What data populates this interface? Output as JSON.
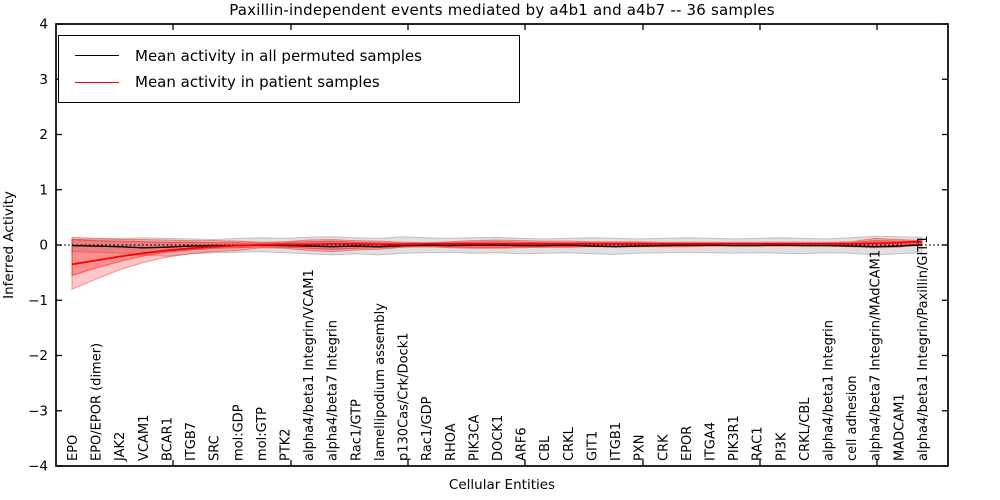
{
  "chart_data": {
    "type": "line",
    "title": "Paxillin-independent events mediated by a4b1 and a4b7 -- 36 samples",
    "xlabel": "Cellular Entities",
    "ylabel": "Inferred Activity",
    "ylim": [
      -4,
      4
    ],
    "yticks": [
      -4,
      -3,
      -2,
      -1,
      0,
      1,
      2,
      3,
      4
    ],
    "grid": false,
    "legend_position": "upper-left",
    "zero_reference_line": true,
    "categories": [
      "EPO",
      "EPO/EPOR (dimer)",
      "JAK2",
      "VCAM1",
      "BCAR1",
      "ITGB7",
      "SRC",
      "mol:GDP",
      "mol:GTP",
      "PTK2",
      "alpha4/beta1 Integrin/VCAM1",
      "alpha4/beta7 Integrin",
      "Rac1/GTP",
      "lamellipodium assembly",
      "p130Cas/Crk/Dock1",
      "Rac1/GDP",
      "RHOA",
      "PIK3CA",
      "DOCK1",
      "ARF6",
      "CBL",
      "CRKL",
      "GIT1",
      "ITGB1",
      "PXN",
      "CRK",
      "EPOR",
      "ITGA4",
      "PIK3R1",
      "RAC1",
      "PI3K",
      "CRKL/CBL",
      "alpha4/beta1 Integrin",
      "cell adhesion",
      "alpha4/beta7 Integrin/MAdCAM1",
      "MADCAM1",
      "alpha4/beta1 Integrin/Paxillin/GIT1"
    ],
    "series": [
      {
        "name": "Mean activity in all permuted samples",
        "color": "#000000",
        "values": [
          -0.01,
          -0.02,
          -0.03,
          -0.05,
          -0.04,
          -0.02,
          -0.01,
          -0.01,
          0,
          -0.01,
          -0.02,
          -0.03,
          -0.02,
          -0.03,
          -0.01,
          0,
          -0.01,
          0,
          0,
          -0.01,
          -0.01,
          0,
          -0.02,
          -0.03,
          -0.02,
          -0.01,
          0,
          0,
          -0.01,
          -0.01,
          0,
          -0.01,
          -0.01,
          -0.02,
          -0.03,
          -0.02,
          0
        ]
      },
      {
        "name": "Mean activity in patient samples",
        "color": "#ff0000",
        "values": [
          -0.35,
          -0.28,
          -0.21,
          -0.15,
          -0.1,
          -0.06,
          -0.03,
          -0.01,
          0,
          0.01,
          0.01,
          0.02,
          0.02,
          0.01,
          0.01,
          0.02,
          0.02,
          0.02,
          0.02,
          0.02,
          0.02,
          0.02,
          0.02,
          0.02,
          0.02,
          0.02,
          0.02,
          0.02,
          0.02,
          0.02,
          0.02,
          0.02,
          0.02,
          0.02,
          0.03,
          0.04,
          0.06
        ]
      }
    ],
    "bands": [
      {
        "name": "permuted-samples-range",
        "color": "#999999",
        "opacity": 0.3,
        "top": [
          0.1,
          0.11,
          0.12,
          0.13,
          0.12,
          0.11,
          0.1,
          0.12,
          0.13,
          0.12,
          0.14,
          0.15,
          0.13,
          0.12,
          0.15,
          0.13,
          0.12,
          0.13,
          0.14,
          0.12,
          0.11,
          0.12,
          0.13,
          0.12,
          0.11,
          0.12,
          0.13,
          0.12,
          0.11,
          0.12,
          0.13,
          0.12,
          0.11,
          0.13,
          0.16,
          0.15,
          0.14
        ],
        "bottom": [
          -0.12,
          -0.13,
          -0.15,
          -0.18,
          -0.2,
          -0.16,
          -0.14,
          -0.13,
          -0.12,
          -0.14,
          -0.16,
          -0.18,
          -0.16,
          -0.18,
          -0.15,
          -0.14,
          -0.13,
          -0.15,
          -0.14,
          -0.16,
          -0.15,
          -0.14,
          -0.16,
          -0.17,
          -0.15,
          -0.14,
          -0.13,
          -0.14,
          -0.15,
          -0.14,
          -0.15,
          -0.16,
          -0.14,
          -0.15,
          -0.18,
          -0.16,
          -0.14
        ]
      },
      {
        "name": "patient-samples-range-outer",
        "color": "#ff0000",
        "opacity": 0.22,
        "top": [
          0.14,
          0.12,
          0.1,
          0.1,
          0.09,
          0.08,
          0.08,
          0.07,
          0.05,
          0.06,
          0.09,
          0.1,
          0.08,
          0.07,
          0.05,
          0.04,
          0.06,
          0.08,
          0.09,
          0.08,
          0.07,
          0.07,
          0.06,
          0.06,
          0.06,
          0.05,
          0.05,
          0.05,
          0.05,
          0.05,
          0.05,
          0.05,
          0.05,
          0.06,
          0.12,
          0.1,
          0.08
        ],
        "bottom": [
          -0.8,
          -0.62,
          -0.45,
          -0.32,
          -0.22,
          -0.16,
          -0.12,
          -0.1,
          -0.05,
          -0.06,
          -0.1,
          -0.12,
          -0.09,
          -0.08,
          -0.04,
          -0.03,
          -0.05,
          -0.06,
          -0.06,
          -0.05,
          -0.04,
          -0.04,
          -0.03,
          -0.03,
          -0.03,
          -0.03,
          -0.03,
          -0.02,
          -0.02,
          -0.02,
          -0.02,
          -0.02,
          -0.02,
          -0.03,
          -0.05,
          -0.04,
          0.02
        ]
      },
      {
        "name": "patient-samples-range-inner",
        "color": "#ff0000",
        "opacity": 0.28,
        "top": [
          0.1,
          0.08,
          0.07,
          0.06,
          0.05,
          0.05,
          0.04,
          0.04,
          0.03,
          0.04,
          0.06,
          0.07,
          0.05,
          0.04,
          0.03,
          0.03,
          0.04,
          0.05,
          0.06,
          0.05,
          0.04,
          0.04,
          0.04,
          0.04,
          0.04,
          0.03,
          0.03,
          0.03,
          0.03,
          0.03,
          0.03,
          0.03,
          0.03,
          0.04,
          0.08,
          0.07,
          0.07
        ],
        "bottom": [
          -0.55,
          -0.42,
          -0.3,
          -0.2,
          -0.13,
          -0.09,
          -0.06,
          -0.05,
          -0.03,
          -0.04,
          -0.06,
          -0.08,
          -0.06,
          -0.05,
          -0.03,
          -0.02,
          -0.03,
          -0.04,
          -0.04,
          -0.03,
          -0.03,
          -0.03,
          -0.02,
          -0.02,
          -0.02,
          -0.02,
          -0.02,
          -0.01,
          -0.01,
          -0.01,
          -0.01,
          -0.01,
          -0.01,
          -0.02,
          -0.03,
          -0.02,
          0.03
        ]
      }
    ]
  }
}
